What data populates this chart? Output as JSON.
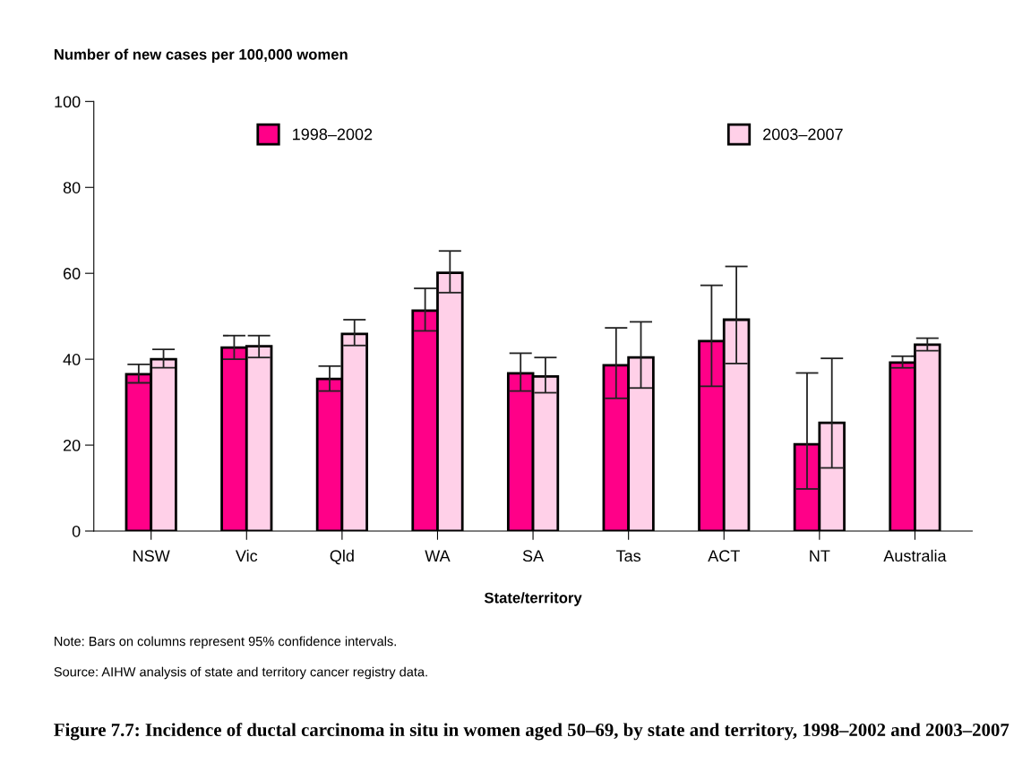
{
  "chart_data": {
    "type": "bar",
    "title": "Figure 7.7: Incidence of ductal carcinoma in situ in women aged 50–69, by state and territory, 1998–2002 and 2003–2007",
    "ylabel": "Number of new cases per 100,000 women",
    "xlabel": "State/territory",
    "categories": [
      "NSW",
      "Vic",
      "Qld",
      "WA",
      "SA",
      "Tas",
      "ACT",
      "NT",
      "Australia"
    ],
    "series": [
      {
        "name": "1998–2002",
        "color": "#ff0088",
        "values": [
          36.5,
          42.7,
          35.4,
          51.3,
          36.7,
          38.6,
          44.2,
          20.2,
          39.2
        ],
        "errors": [
          [
            34.5,
            38.8
          ],
          [
            40.0,
            45.5
          ],
          [
            32.6,
            38.4
          ],
          [
            46.6,
            56.5
          ],
          [
            32.6,
            41.4
          ],
          [
            30.9,
            47.3
          ],
          [
            33.7,
            57.2
          ],
          [
            9.8,
            36.8
          ],
          [
            38.0,
            40.7
          ]
        ]
      },
      {
        "name": "2003–2007",
        "color": "#ffd0e8",
        "values": [
          40.0,
          43.0,
          45.9,
          60.1,
          36.0,
          40.4,
          49.2,
          25.2,
          43.4
        ],
        "errors": [
          [
            38.0,
            42.3
          ],
          [
            40.4,
            45.5
          ],
          [
            43.2,
            49.2
          ],
          [
            55.5,
            65.2
          ],
          [
            32.2,
            40.4
          ],
          [
            33.3,
            48.7
          ],
          [
            39.0,
            61.6
          ],
          [
            14.7,
            40.2
          ],
          [
            42.0,
            44.9
          ]
        ]
      }
    ],
    "ylim": [
      0,
      100
    ],
    "yticks": [
      0,
      20,
      40,
      60,
      80,
      100
    ],
    "grid": false,
    "legend": "top",
    "annotations": [
      "Note: Bars on columns represent 95% confidence intervals.",
      "Source: AIHW analysis of state and territory cancer registry data."
    ]
  }
}
